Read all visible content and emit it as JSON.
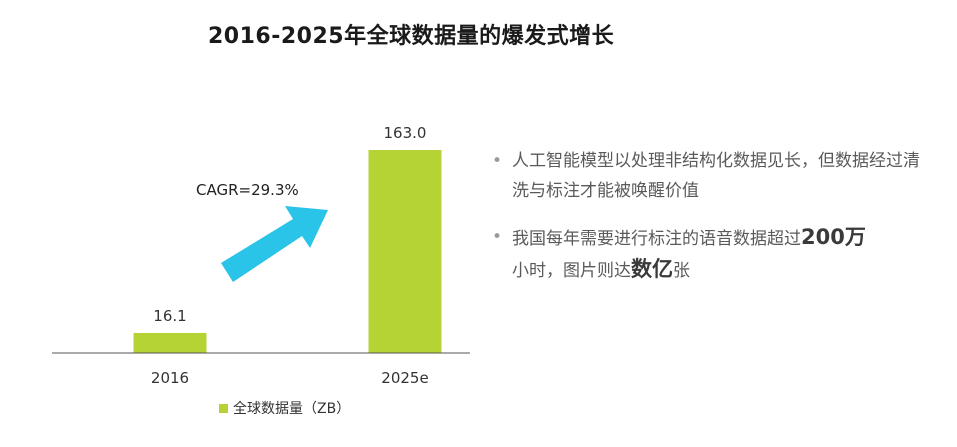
{
  "chart_data": {
    "type": "bar",
    "title": "2016-2025年全球数据量的爆发式增长",
    "categories": [
      "2016",
      "2025e"
    ],
    "series": [
      {
        "name": "全球数据量（ZB）",
        "values": [
          16.1,
          163.0
        ],
        "color": "#b5d334"
      }
    ],
    "data_labels": [
      "16.1",
      "163.0"
    ],
    "ylim": [
      0,
      170
    ],
    "grid": false,
    "legend": "bottom-center",
    "annotations": [
      {
        "text": "CAGR=29.3%",
        "arrow_color": "#29c4e8"
      }
    ]
  },
  "bullets": [
    {
      "parts": [
        {
          "text": "人工智能模型以处理非结构化数据见长，但数据经过清洗与标注才能被唤醒价值",
          "big": false
        }
      ]
    },
    {
      "parts": [
        {
          "text": "我国每年需要进行标注的语音数据超过",
          "big": false
        },
        {
          "text": "200万",
          "big": true
        },
        {
          "text": "小时，图片则达",
          "big": false
        },
        {
          "text": "数亿",
          "big": true
        },
        {
          "text": "张",
          "big": false
        }
      ]
    }
  ]
}
